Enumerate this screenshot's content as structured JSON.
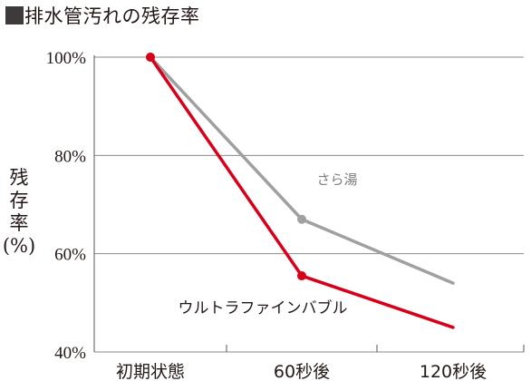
{
  "chart_data": {
    "type": "line",
    "title": "排水管汚れの残存率",
    "ylabel": "残存率(%)",
    "xlabel": "",
    "categories": [
      "初期状態",
      "60秒後",
      "120秒後"
    ],
    "y_ticks": [
      "100%",
      "80%",
      "60%",
      "40%"
    ],
    "ylim": [
      40,
      100
    ],
    "grid": true,
    "series": [
      {
        "name": "さら湯",
        "values": [
          100,
          67,
          54
        ],
        "color": "#a0a0a0"
      },
      {
        "name": "ウルトラファインバブル",
        "values": [
          100,
          55.5,
          45
        ],
        "color": "#d7001a"
      }
    ]
  }
}
